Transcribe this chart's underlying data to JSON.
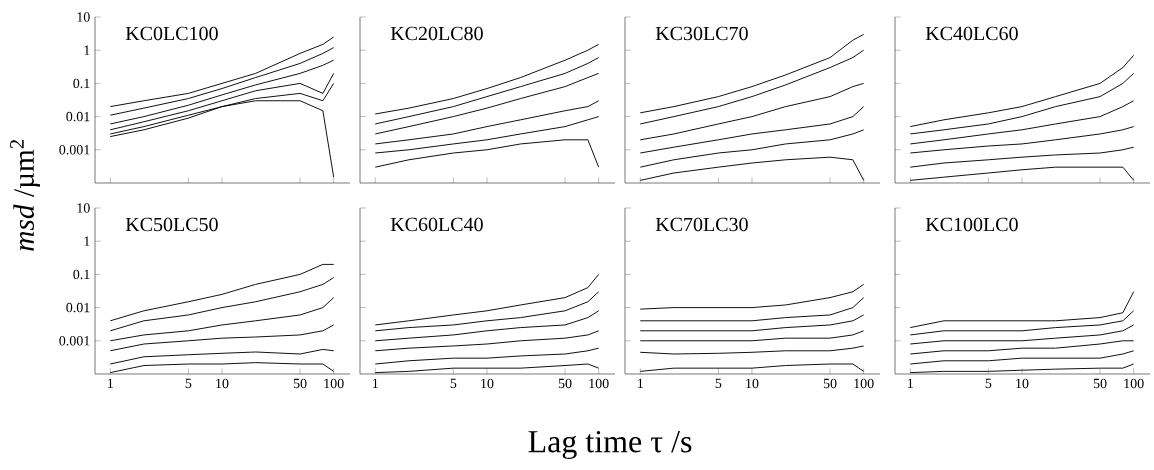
{
  "chart_data": [
    {
      "type": "line",
      "title": "KC0LC100",
      "ylabel": "*msd* /µm$^{2}$",
      "xlabel": "Lag time τ /s",
      "log": "xy",
      "tick_labels": "y",
      "xlim": [
        0.73,
        140
      ],
      "ylim": [
        0.0001,
        10
      ],
      "xticks": [
        1,
        5,
        10,
        50,
        100
      ],
      "yticks": [
        0.001,
        0.01,
        0.1,
        1,
        10
      ],
      "x": [
        1,
        2,
        5,
        10,
        20,
        50,
        80,
        100
      ],
      "series": [
        {
          "color": "#000000",
          "values": [
            0.02,
            0.03,
            0.05,
            0.1,
            0.2,
            0.8,
            1.5,
            2.5
          ]
        },
        {
          "color": "#000000",
          "values": [
            0.011,
            0.018,
            0.035,
            0.07,
            0.15,
            0.4,
            0.8,
            1.2
          ]
        },
        {
          "color": "#000000",
          "values": [
            0.006,
            0.01,
            0.022,
            0.045,
            0.09,
            0.2,
            0.35,
            0.5
          ]
        },
        {
          "color": "#000000",
          "values": [
            0.004,
            0.007,
            0.015,
            0.03,
            0.06,
            0.1,
            0.05,
            0.2
          ]
        },
        {
          "color": "#000000",
          "values": [
            0.003,
            0.005,
            0.011,
            0.02,
            0.035,
            0.05,
            0.03,
            0.1
          ]
        },
        {
          "color": "#000000",
          "values": [
            0.0025,
            0.004,
            0.009,
            0.02,
            0.03,
            0.03,
            0.015,
            0.00015
          ]
        }
      ]
    },
    {
      "type": "line",
      "title": "KC20LC80",
      "log": "xy",
      "tick_labels": false,
      "xlim": [
        0.73,
        140
      ],
      "ylim": [
        0.0001,
        10
      ],
      "xticks": [
        1,
        5,
        10,
        50,
        100
      ],
      "yticks": [
        0.001,
        0.01,
        0.1,
        1,
        10
      ],
      "x": [
        1,
        2,
        5,
        10,
        20,
        50,
        80,
        100
      ],
      "series": [
        {
          "color": "#000000",
          "values": [
            0.012,
            0.018,
            0.035,
            0.07,
            0.15,
            0.5,
            1,
            1.5
          ]
        },
        {
          "color": "#000000",
          "values": [
            0.006,
            0.01,
            0.02,
            0.04,
            0.08,
            0.2,
            0.4,
            0.6
          ]
        },
        {
          "color": "#000000",
          "values": [
            0.003,
            0.005,
            0.01,
            0.018,
            0.035,
            0.08,
            0.15,
            0.2
          ]
        },
        {
          "color": "#000000",
          "values": [
            0.0015,
            0.002,
            0.003,
            0.005,
            0.008,
            0.015,
            0.02,
            0.03
          ]
        },
        {
          "color": "#000000",
          "values": [
            0.0008,
            0.001,
            0.0015,
            0.002,
            0.003,
            0.005,
            0.008,
            0.01
          ]
        },
        {
          "color": "#000000",
          "values": [
            0.0003,
            0.0005,
            0.0008,
            0.001,
            0.0015,
            0.002,
            0.002,
            0.0003
          ]
        }
      ]
    },
    {
      "type": "line",
      "title": "KC30LC70",
      "log": "xy",
      "tick_labels": false,
      "xlim": [
        0.73,
        140
      ],
      "ylim": [
        0.0001,
        10
      ],
      "xticks": [
        1,
        5,
        10,
        50,
        100
      ],
      "yticks": [
        0.001,
        0.01,
        0.1,
        1,
        10
      ],
      "x": [
        1,
        2,
        5,
        10,
        20,
        50,
        80,
        100
      ],
      "series": [
        {
          "color": "#000000",
          "values": [
            0.013,
            0.02,
            0.04,
            0.08,
            0.18,
            0.6,
            2,
            3
          ]
        },
        {
          "color": "#000000",
          "values": [
            0.006,
            0.01,
            0.02,
            0.04,
            0.09,
            0.3,
            0.6,
            1
          ]
        },
        {
          "color": "#000000",
          "values": [
            0.002,
            0.003,
            0.006,
            0.01,
            0.02,
            0.04,
            0.08,
            0.1
          ]
        },
        {
          "color": "#000000",
          "values": [
            0.0008,
            0.0012,
            0.002,
            0.003,
            0.004,
            0.006,
            0.01,
            0.02
          ]
        },
        {
          "color": "#000000",
          "values": [
            0.0003,
            0.0005,
            0.0008,
            0.001,
            0.0015,
            0.002,
            0.003,
            0.004
          ]
        },
        {
          "color": "#000000",
          "values": [
            0.00012,
            0.0002,
            0.0003,
            0.0004,
            0.0005,
            0.0006,
            0.0005,
            0.00012
          ]
        }
      ]
    },
    {
      "type": "line",
      "title": "KC40LC60",
      "log": "xy",
      "tick_labels": false,
      "xlim": [
        0.73,
        140
      ],
      "ylim": [
        0.0001,
        10
      ],
      "xticks": [
        1,
        5,
        10,
        50,
        100
      ],
      "yticks": [
        0.001,
        0.01,
        0.1,
        1,
        10
      ],
      "x": [
        1,
        2,
        5,
        10,
        20,
        50,
        80,
        100
      ],
      "series": [
        {
          "color": "#000000",
          "values": [
            0.005,
            0.008,
            0.013,
            0.02,
            0.04,
            0.1,
            0.3,
            0.7
          ]
        },
        {
          "color": "#000000",
          "values": [
            0.003,
            0.004,
            0.006,
            0.01,
            0.02,
            0.04,
            0.1,
            0.2
          ]
        },
        {
          "color": "#000000",
          "values": [
            0.0015,
            0.002,
            0.003,
            0.004,
            0.006,
            0.01,
            0.02,
            0.03
          ]
        },
        {
          "color": "#000000",
          "values": [
            0.0008,
            0.001,
            0.0013,
            0.0015,
            0.002,
            0.003,
            0.004,
            0.005
          ]
        },
        {
          "color": "#000000",
          "values": [
            0.0003,
            0.0004,
            0.0005,
            0.0006,
            0.0007,
            0.0008,
            0.001,
            0.0012
          ]
        },
        {
          "color": "#000000",
          "values": [
            0.00012,
            0.00015,
            0.0002,
            0.00025,
            0.0003,
            0.0003,
            0.0003,
            0.00012
          ]
        }
      ]
    },
    {
      "type": "line",
      "title": "KC50LC50",
      "log": "xy",
      "xlim": [
        0.73,
        140
      ],
      "ylim": [
        0.0001,
        10
      ],
      "xticks": [
        1,
        5,
        10,
        50,
        100
      ],
      "yticks": [
        0.001,
        0.01,
        0.1,
        1,
        10
      ],
      "x": [
        1,
        2,
        5,
        10,
        20,
        50,
        80,
        100
      ],
      "series": [
        {
          "color": "#000000",
          "values": [
            0.004,
            0.008,
            0.015,
            0.025,
            0.05,
            0.1,
            0.2,
            0.2
          ]
        },
        {
          "color": "#000000",
          "values": [
            0.002,
            0.004,
            0.006,
            0.01,
            0.015,
            0.03,
            0.05,
            0.08
          ]
        },
        {
          "color": "#000000",
          "values": [
            0.001,
            0.0015,
            0.002,
            0.003,
            0.004,
            0.006,
            0.01,
            0.02
          ]
        },
        {
          "color": "#000000",
          "values": [
            0.0005,
            0.0008,
            0.001,
            0.0012,
            0.0013,
            0.0015,
            0.002,
            0.003
          ]
        },
        {
          "color": "#000000",
          "values": [
            0.0002,
            0.00033,
            0.00038,
            0.00042,
            0.00046,
            0.0004,
            0.00055,
            0.0005
          ]
        },
        {
          "color": "#000000",
          "values": [
            0.00011,
            0.00018,
            0.0002,
            0.0002,
            0.00022,
            0.0002,
            0.0002,
            0.00012
          ]
        }
      ]
    },
    {
      "type": "line",
      "title": "KC60LC40",
      "log": "xy",
      "tick_labels": "x",
      "xlim": [
        0.73,
        140
      ],
      "ylim": [
        0.0001,
        10
      ],
      "xticks": [
        1,
        5,
        10,
        50,
        100
      ],
      "yticks": [
        0.001,
        0.01,
        0.1,
        1,
        10
      ],
      "x": [
        1,
        2,
        5,
        10,
        20,
        50,
        80,
        100
      ],
      "series": [
        {
          "color": "#000000",
          "values": [
            0.003,
            0.004,
            0.006,
            0.008,
            0.012,
            0.02,
            0.04,
            0.1
          ]
        },
        {
          "color": "#000000",
          "values": [
            0.002,
            0.0025,
            0.003,
            0.004,
            0.005,
            0.008,
            0.015,
            0.03
          ]
        },
        {
          "color": "#000000",
          "values": [
            0.001,
            0.0012,
            0.0015,
            0.002,
            0.0025,
            0.003,
            0.005,
            0.008
          ]
        },
        {
          "color": "#000000",
          "values": [
            0.0005,
            0.0006,
            0.0007,
            0.0008,
            0.001,
            0.0012,
            0.0015,
            0.002
          ]
        },
        {
          "color": "#000000",
          "values": [
            0.0002,
            0.00025,
            0.0003,
            0.0003,
            0.00035,
            0.0004,
            0.0005,
            0.0006
          ]
        },
        {
          "color": "#000000",
          "values": [
            0.00011,
            0.00012,
            0.00015,
            0.00015,
            0.00015,
            0.00018,
            0.0002,
            0.00015
          ]
        }
      ]
    },
    {
      "type": "line",
      "title": "KC70LC30",
      "log": "xy",
      "tick_labels": "x",
      "xlim": [
        0.73,
        140
      ],
      "ylim": [
        0.0001,
        10
      ],
      "xticks": [
        1,
        5,
        10,
        50,
        100
      ],
      "yticks": [
        0.001,
        0.01,
        0.1,
        1,
        10
      ],
      "x": [
        1,
        2,
        5,
        10,
        20,
        50,
        80,
        100
      ],
      "series": [
        {
          "color": "#000000",
          "values": [
            0.009,
            0.01,
            0.01,
            0.01,
            0.012,
            0.02,
            0.03,
            0.05
          ]
        },
        {
          "color": "#000000",
          "values": [
            0.004,
            0.004,
            0.004,
            0.004,
            0.005,
            0.006,
            0.01,
            0.02
          ]
        },
        {
          "color": "#000000",
          "values": [
            0.002,
            0.002,
            0.002,
            0.002,
            0.0025,
            0.003,
            0.004,
            0.006
          ]
        },
        {
          "color": "#000000",
          "values": [
            0.001,
            0.001,
            0.001,
            0.001,
            0.0012,
            0.0012,
            0.0015,
            0.002
          ]
        },
        {
          "color": "#000000",
          "values": [
            0.00045,
            0.0004,
            0.00042,
            0.00045,
            0.0005,
            0.0005,
            0.0006,
            0.0007
          ]
        },
        {
          "color": "#000000",
          "values": [
            0.00012,
            0.00015,
            0.00015,
            0.00015,
            0.00018,
            0.0002,
            0.0002,
            0.00012
          ]
        }
      ]
    },
    {
      "type": "line",
      "title": "KC100LC0",
      "log": "xy",
      "tick_labels": "x",
      "xlim": [
        0.73,
        140
      ],
      "ylim": [
        0.0001,
        10
      ],
      "xticks": [
        1,
        5,
        10,
        50,
        100
      ],
      "yticks": [
        0.001,
        0.01,
        0.1,
        1,
        10
      ],
      "x": [
        1,
        2,
        5,
        10,
        20,
        50,
        80,
        100
      ],
      "series": [
        {
          "color": "#000000",
          "values": [
            0.0025,
            0.004,
            0.004,
            0.004,
            0.004,
            0.005,
            0.007,
            0.03
          ]
        },
        {
          "color": "#000000",
          "values": [
            0.0015,
            0.002,
            0.002,
            0.002,
            0.0025,
            0.003,
            0.004,
            0.008
          ]
        },
        {
          "color": "#000000",
          "values": [
            0.0008,
            0.001,
            0.001,
            0.001,
            0.0012,
            0.0015,
            0.002,
            0.003
          ]
        },
        {
          "color": "#000000",
          "values": [
            0.0004,
            0.0005,
            0.0005,
            0.0006,
            0.0006,
            0.0008,
            0.001,
            0.001
          ]
        },
        {
          "color": "#000000",
          "values": [
            0.0002,
            0.00025,
            0.00025,
            0.0003,
            0.0003,
            0.0003,
            0.0004,
            0.0005
          ]
        },
        {
          "color": "#000000",
          "values": [
            0.00011,
            0.00012,
            0.00012,
            0.00013,
            0.00014,
            0.00015,
            0.00015,
            0.0002
          ]
        }
      ]
    }
  ]
}
